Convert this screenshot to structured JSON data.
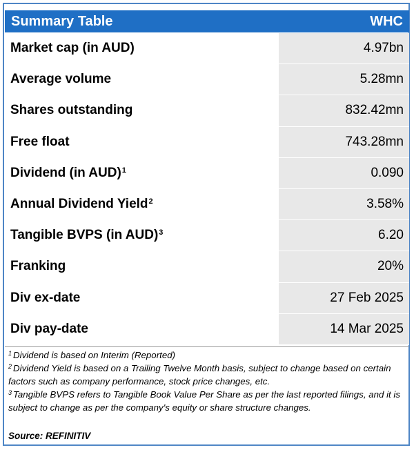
{
  "header": {
    "title": "Summary Table",
    "ticker": "WHC"
  },
  "rows": [
    {
      "label": "Market cap (in AUD)",
      "sup": "",
      "value": "4.97bn"
    },
    {
      "label": "Average volume",
      "sup": "",
      "value": "5.28mn"
    },
    {
      "label": "Shares outstanding",
      "sup": "",
      "value": "832.42mn"
    },
    {
      "label": "Free float",
      "sup": "",
      "value": "743.28mn"
    },
    {
      "label": "Dividend (in AUD)",
      "sup": "1",
      "value": "0.090"
    },
    {
      "label": "Annual Dividend Yield",
      "sup": "2",
      "value": "3.58%"
    },
    {
      "label": "Tangible BVPS (in AUD)",
      "sup": "3",
      "value": "6.20"
    },
    {
      "label": "Franking",
      "sup": "",
      "value": "20%"
    },
    {
      "label": "Div ex-date",
      "sup": "",
      "value": "27 Feb 2025"
    },
    {
      "label": "Div pay-date",
      "sup": "",
      "value": "14 Mar 2025"
    }
  ],
  "notes": [
    {
      "num": "1",
      "text": "Dividend is based on Interim (Reported)"
    },
    {
      "num": "2",
      "text": "Dividend Yield is based on a Trailing Twelve Month basis, subject to change based on certain factors such as company performance, stock price changes, etc."
    },
    {
      "num": "3",
      "text": "Tangible BVPS refers to Tangible Book Value Per Share as per the last reported filings, and it is subject to change as per the company's equity or share structure changes."
    }
  ],
  "source": "Source: REFINITIV",
  "colors": {
    "header_bg": "#1f6fc5",
    "value_bg": "#e8e8e8",
    "border": "#4f86c6"
  }
}
